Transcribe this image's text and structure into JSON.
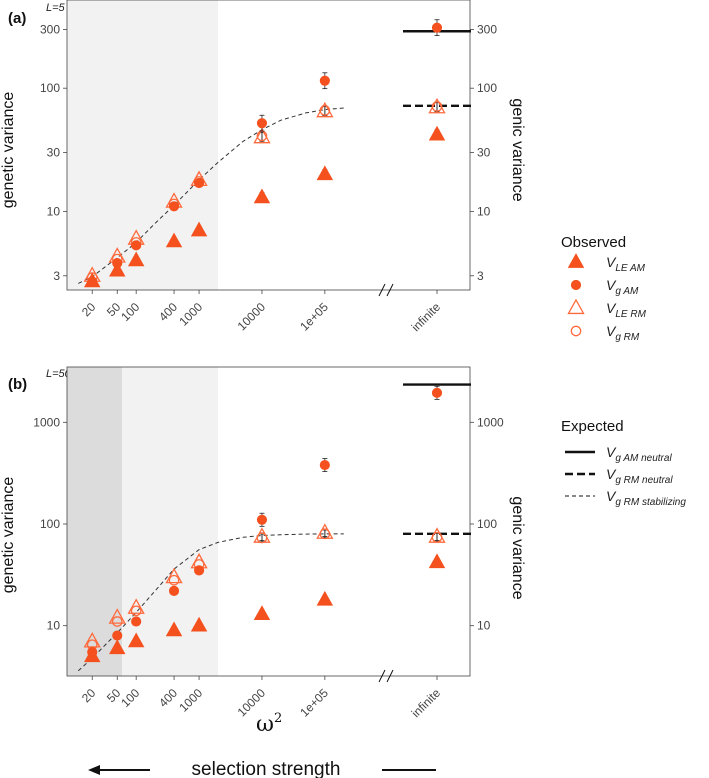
{
  "chart_data": [
    {
      "panel": "(a)",
      "type": "scatter",
      "annotation": "L=5",
      "ylabel": "genetic variance",
      "ylabel_right": "genic variance",
      "yscale": "log",
      "ylim": [
        2.3,
        520
      ],
      "yticks": [
        3,
        10,
        30,
        100,
        300
      ],
      "ytick_labels": [
        "3",
        "10",
        "30",
        "100",
        "300"
      ],
      "x_categories": [
        "20",
        "50",
        "100",
        "400",
        "1000",
        "10000",
        "1e+05",
        "infinite"
      ],
      "shaded_regions": [
        {
          "from": 8,
          "to": 2000,
          "color": "#f2f2f2"
        }
      ],
      "series": [
        {
          "name": "V_LE AM",
          "marker": "filled-triangle",
          "x": [
            20,
            50,
            100,
            400,
            1000,
            10000,
            100000,
            "infinite"
          ],
          "y": [
            2.7,
            3.3,
            4.0,
            5.7,
            7.0,
            13,
            20,
            42
          ]
        },
        {
          "name": "V_g AM",
          "marker": "filled-circle",
          "x": [
            20,
            50,
            100,
            400,
            1000,
            10000,
            100000,
            "infinite"
          ],
          "y": [
            2.7,
            3.8,
            5.3,
            11,
            17,
            52,
            115,
            310
          ]
        },
        {
          "name": "V_LE RM",
          "marker": "open-triangle",
          "x": [
            20,
            50,
            100,
            400,
            1000,
            10000,
            100000,
            "infinite"
          ],
          "y": [
            3.0,
            4.3,
            6.0,
            12,
            18,
            40,
            65,
            70
          ]
        },
        {
          "name": "V_g RM",
          "marker": "open-circle",
          "x": [
            20,
            50,
            100,
            400,
            1000,
            10000,
            100000,
            "infinite"
          ],
          "y": [
            2.9,
            4.1,
            5.6,
            11.5,
            17.5,
            41,
            66,
            71
          ]
        }
      ],
      "expected": {
        "am_neutral": 290,
        "rm_neutral": 72,
        "stabilizing_curve": {
          "x": [
            12,
            20,
            50,
            100,
            200,
            400,
            1000,
            2000,
            5000,
            10000,
            20000,
            50000,
            100000,
            200000
          ],
          "y": [
            2.6,
            2.95,
            4.2,
            5.6,
            8.0,
            11.2,
            18.0,
            25.0,
            37.0,
            46.0,
            55.0,
            63.0,
            67.0,
            69.0
          ]
        }
      }
    },
    {
      "panel": "(b)",
      "type": "scatter",
      "annotation": "L=50",
      "ylabel": "genetic variance",
      "ylabel_right": "genic variance",
      "yscale": "log",
      "ylim": [
        3.2,
        3500
      ],
      "yticks": [
        10,
        100,
        1000
      ],
      "ytick_labels": [
        "10",
        "100",
        "1000"
      ],
      "x_categories": [
        "20",
        "50",
        "100",
        "400",
        "1000",
        "10000",
        "1e+05",
        "infinite"
      ],
      "shaded_regions": [
        {
          "from": 8,
          "to": 60,
          "color": "#dcdcdc"
        },
        {
          "from": 60,
          "to": 2000,
          "color": "#f2f2f2"
        }
      ],
      "series": [
        {
          "name": "V_LE AM",
          "marker": "filled-triangle",
          "x": [
            20,
            50,
            100,
            400,
            1000,
            10000,
            100000,
            "infinite"
          ],
          "y": [
            5.0,
            6.0,
            7.0,
            9.0,
            10,
            13,
            18,
            42
          ]
        },
        {
          "name": "V_g AM",
          "marker": "filled-circle",
          "x": [
            20,
            50,
            100,
            400,
            1000,
            10000,
            100000,
            "infinite"
          ],
          "y": [
            5.5,
            8.0,
            11,
            22,
            35,
            110,
            380,
            1950
          ]
        },
        {
          "name": "V_LE RM",
          "marker": "open-triangle",
          "x": [
            20,
            50,
            100,
            400,
            1000,
            10000,
            100000,
            "infinite"
          ],
          "y": [
            7.0,
            12,
            15,
            30,
            42,
            75,
            82,
            75
          ]
        },
        {
          "name": "V_g RM",
          "marker": "open-circle",
          "x": [
            20,
            50,
            100,
            400,
            1000,
            10000,
            100000,
            "infinite"
          ],
          "y": [
            6.5,
            11,
            14,
            28,
            40,
            73,
            80,
            74
          ]
        }
      ],
      "expected": {
        "am_neutral": 2350,
        "rm_neutral": 80,
        "stabilizing_curve": {
          "x": [
            12,
            20,
            50,
            100,
            200,
            400,
            1000,
            2000,
            5000,
            10000,
            20000,
            50000,
            100000,
            200000
          ],
          "y": [
            3.6,
            4.8,
            8.5,
            13.5,
            22,
            36,
            56,
            66,
            74,
            77,
            78.5,
            79.5,
            80,
            80
          ]
        }
      }
    }
  ],
  "x_axis_title": "ω",
  "x_axis_superscript": "2",
  "selection_strength_label": "selection strength",
  "legend": {
    "observed_title": "Observed",
    "observed": [
      {
        "marker": "filled-triangle",
        "base": "V",
        "sub": "LE AM"
      },
      {
        "marker": "filled-circle",
        "base": "V",
        "sub": "g AM"
      },
      {
        "marker": "open-triangle",
        "base": "V",
        "sub": "LE RM"
      },
      {
        "marker": "open-circle",
        "base": "V",
        "sub": "g RM"
      }
    ],
    "expected_title": "Expected",
    "expected": [
      {
        "line": "solid",
        "base": "V",
        "sub": "g AM neutral"
      },
      {
        "line": "thick-dashed",
        "base": "V",
        "sub": "g RM neutral"
      },
      {
        "line": "thin-dashed",
        "base": "V",
        "sub": "g RM stabilizing"
      }
    ]
  },
  "colors": {
    "marker": "#f4511e",
    "marker_edge": "#ff6a3d",
    "panel_border": "#444444",
    "light_shade": "#f2f2f2",
    "dark_shade": "#dcdcdc"
  }
}
